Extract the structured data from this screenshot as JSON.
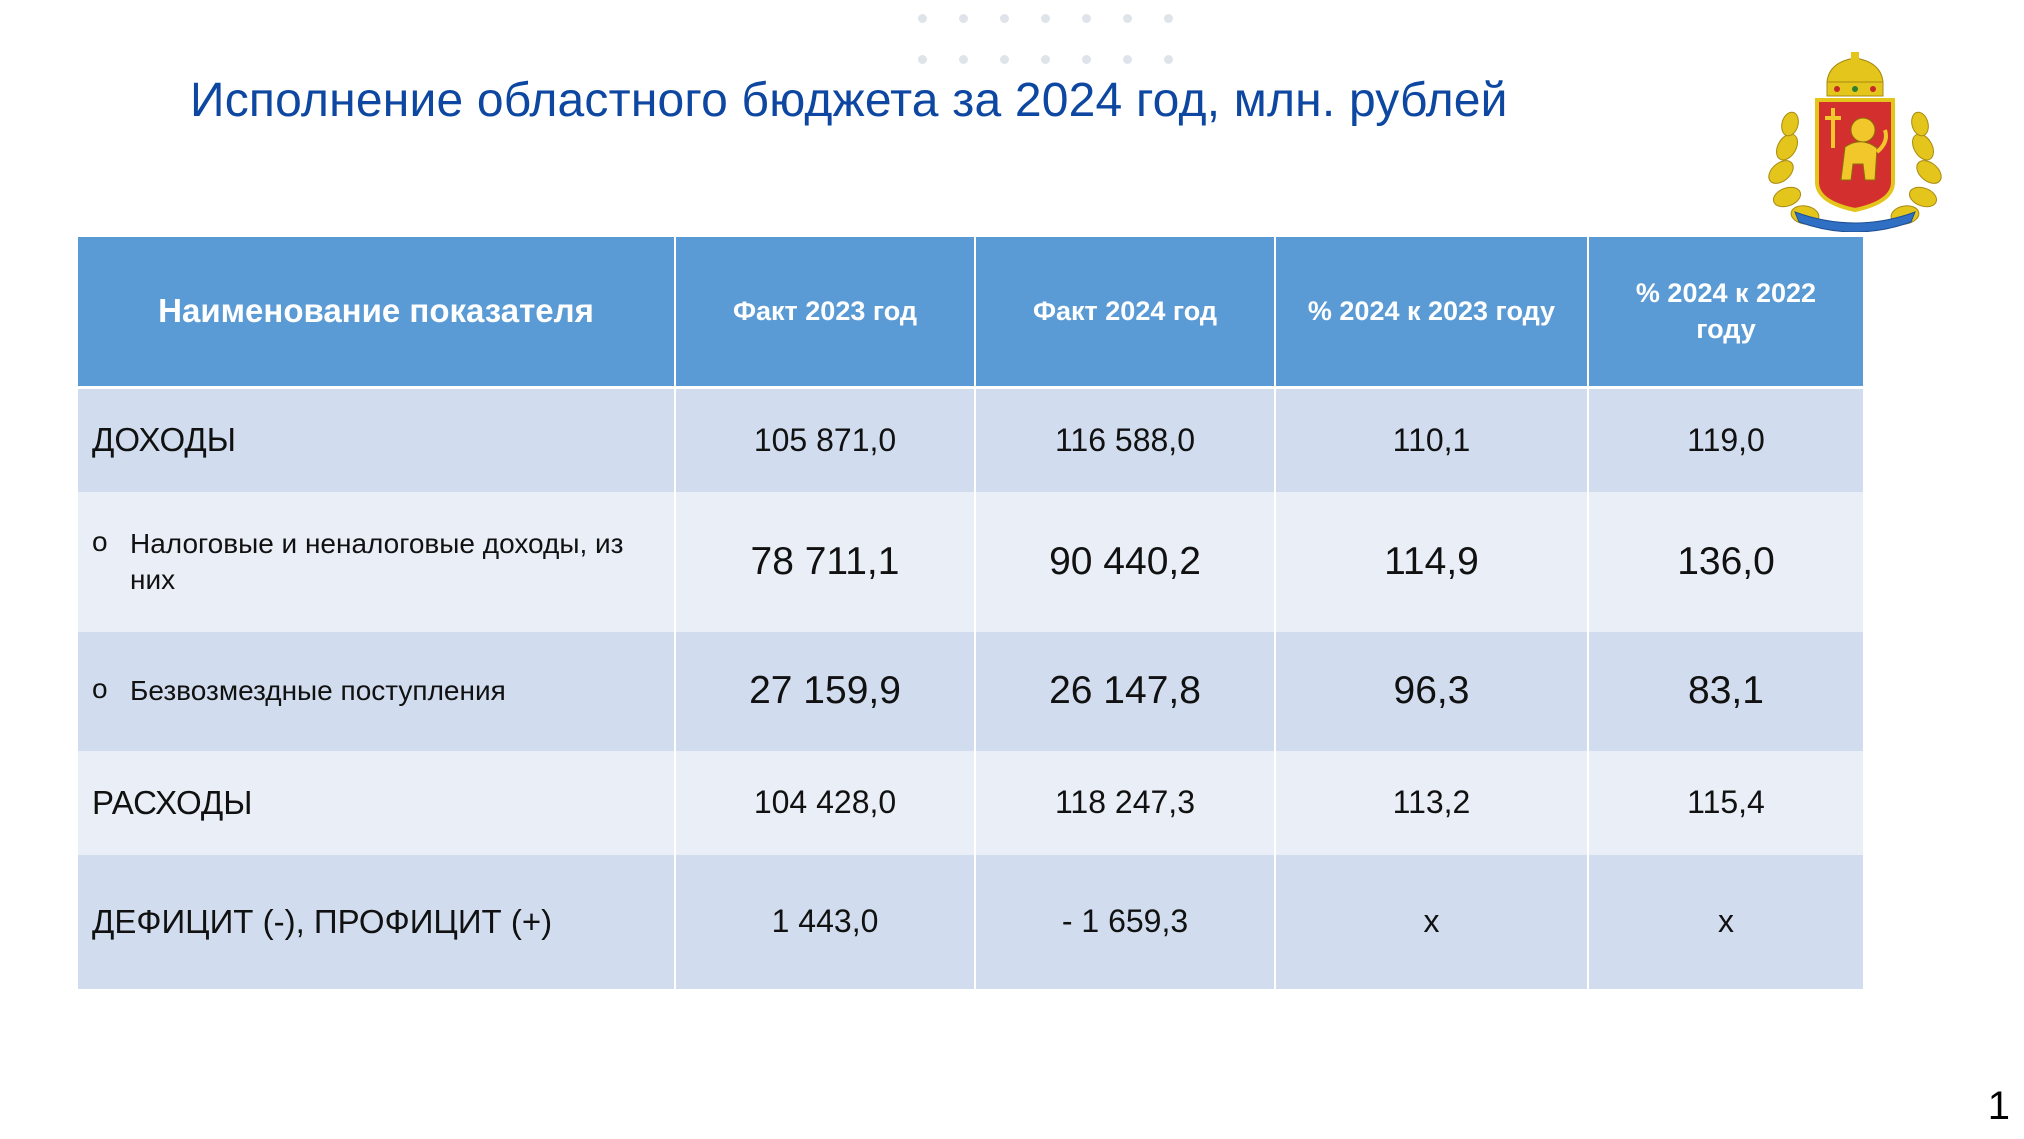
{
  "slide": {
    "title": "Исполнение областного бюджета за 2024 год, млн. рублей",
    "page_number": "1"
  },
  "table": {
    "headers": [
      "Наименование показателя",
      "Факт 2023 год",
      "Факт 2024 год",
      "% 2024 к 2023 году",
      "% 2024 к 2022 году"
    ],
    "rows": [
      {
        "label": "ДОХОДЫ",
        "bullet": "",
        "values": [
          "105 871,0",
          "116 588,0",
          "110,1",
          "119,0"
        ]
      },
      {
        "label": "Налоговые и неналоговые доходы, из них",
        "bullet": "o",
        "values": [
          "78 711,1",
          "90 440,2",
          "114,9",
          "136,0"
        ]
      },
      {
        "label": "Безвозмездные поступления",
        "bullet": "o",
        "values": [
          "27 159,9",
          "26 147,8",
          "96,3",
          "83,1"
        ]
      },
      {
        "label": "РАСХОДЫ",
        "bullet": "",
        "values": [
          "104 428,0",
          "118 247,3",
          "113,2",
          "115,4"
        ]
      },
      {
        "label": "ДЕФИЦИТ (-), ПРОФИЦИТ (+)",
        "bullet": "",
        "values": [
          "1 443,0",
          "- 1 659,3",
          "x",
          "x"
        ]
      }
    ]
  },
  "colors": {
    "title": "#0d47a1",
    "header_bg": "#5b9bd5",
    "row_dark": "#d1ddee",
    "row_light": "#e9eef7"
  },
  "icons": {
    "emblem": "vladimir-oblast-coat-of-arms-icon",
    "dots": "decorative-dots"
  }
}
